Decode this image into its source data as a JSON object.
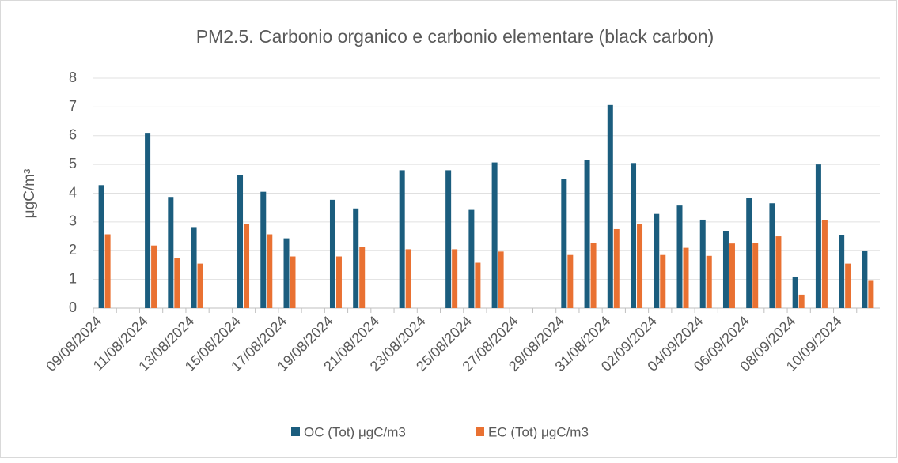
{
  "chart_data": {
    "type": "bar",
    "title": "PM2.5. Carbonio organico e carbonio elementare (black carbon)",
    "y_label": "μgC/m³",
    "categories": [
      "09/08/2024",
      null,
      "11/08/2024",
      null,
      "13/08/2024",
      null,
      "15/08/2024",
      null,
      "17/08/2024",
      null,
      "19/08/2024",
      null,
      "21/08/2024",
      null,
      "23/08/2024",
      null,
      "25/08/2024",
      null,
      "27/08/2024",
      null,
      "29/08/2024",
      null,
      "31/08/2024",
      null,
      "02/09/2024",
      null,
      "04/09/2024",
      null,
      "06/09/2024",
      null,
      "08/09/2024",
      null,
      "10/09/2024",
      null
    ],
    "series": [
      {
        "name": "OC (Tot) μgC/m3",
        "color": "#1b5d7e",
        "values": [
          4.28,
          null,
          6.1,
          3.87,
          2.82,
          null,
          4.63,
          4.05,
          2.43,
          null,
          3.77,
          3.47,
          null,
          4.8,
          null,
          4.8,
          3.42,
          5.07,
          null,
          null,
          4.5,
          5.15,
          7.07,
          5.05,
          3.28,
          3.57,
          3.08,
          2.68,
          3.83,
          3.65,
          1.1,
          5.0,
          2.53,
          1.98
        ]
      },
      {
        "name": "EC (Tot) μgC/m3",
        "color": "#e97132",
        "values": [
          2.57,
          null,
          2.18,
          1.75,
          1.55,
          null,
          2.93,
          2.57,
          1.8,
          null,
          1.8,
          2.12,
          null,
          2.05,
          null,
          2.05,
          1.58,
          1.97,
          null,
          null,
          1.85,
          2.27,
          2.75,
          2.92,
          1.85,
          2.1,
          1.82,
          2.25,
          2.27,
          2.5,
          0.47,
          3.07,
          1.55,
          0.95
        ]
      }
    ],
    "ylim": [
      0,
      8
    ],
    "yticks": [
      0,
      1,
      2,
      3,
      4,
      5,
      6,
      7,
      8
    ],
    "grid": true,
    "legend": "bottom"
  }
}
